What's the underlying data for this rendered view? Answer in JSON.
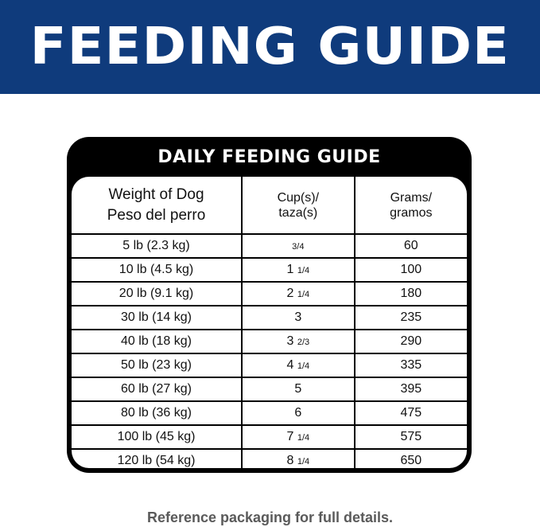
{
  "banner": {
    "title": "FEEDING GUIDE",
    "color": "#0f3b7c"
  },
  "table": {
    "title": "DAILY FEEDING GUIDE",
    "headers": {
      "weight_en": "Weight of Dog",
      "weight_es": "Peso del perro",
      "cups_en": "Cup(s)/",
      "cups_es": "taza(s)",
      "grams_en": "Grams/",
      "grams_es": "gramos"
    },
    "rows": [
      {
        "weight": "5 lb (2.3 kg)",
        "cups_whole": "",
        "cups_frac": "3/4",
        "grams": "60"
      },
      {
        "weight": "10 lb (4.5 kg)",
        "cups_whole": "1",
        "cups_frac": "1/4",
        "grams": "100"
      },
      {
        "weight": "20 lb (9.1 kg)",
        "cups_whole": "2",
        "cups_frac": "1/4",
        "grams": "180"
      },
      {
        "weight": "30 lb (14 kg)",
        "cups_whole": "3",
        "cups_frac": "",
        "grams": "235"
      },
      {
        "weight": "40 lb (18 kg)",
        "cups_whole": "3",
        "cups_frac": "2/3",
        "grams": "290"
      },
      {
        "weight": "50 lb (23 kg)",
        "cups_whole": "4",
        "cups_frac": "1/4",
        "grams": "335"
      },
      {
        "weight": "60 lb (27 kg)",
        "cups_whole": "5",
        "cups_frac": "",
        "grams": "395"
      },
      {
        "weight": "80 lb (36 kg)",
        "cups_whole": "6",
        "cups_frac": "",
        "grams": "475"
      },
      {
        "weight": "100 lb (45 kg)",
        "cups_whole": "7",
        "cups_frac": "1/4",
        "grams": "575"
      },
      {
        "weight": "120 lb (54 kg)",
        "cups_whole": "8",
        "cups_frac": "1/4",
        "grams": "650"
      }
    ]
  },
  "footer": "Reference packaging for full details."
}
